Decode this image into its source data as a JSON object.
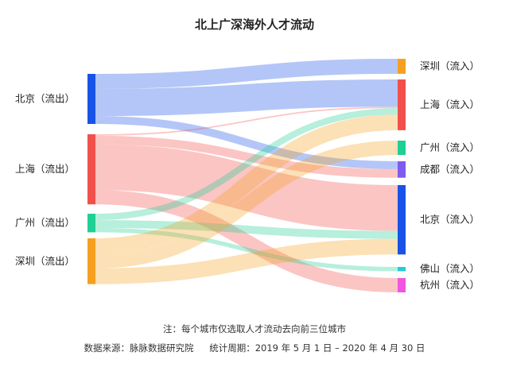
{
  "title": "北上广深海外人才流动",
  "note": "注：每个城市仅选取人才流动去向前三位城市",
  "source": "数据来源：脉脉数据研究院",
  "period": "统计周期：2019 年 5 月 1 日 – 2020 年 4 月 30 日",
  "chart_data": {
    "type": "sankey",
    "sources": [
      {
        "name": "北京（流出）",
        "color": "#1852e6"
      },
      {
        "name": "上海（流出）",
        "color": "#f2504b"
      },
      {
        "name": "广州（流出）",
        "color": "#20cf96"
      },
      {
        "name": "深圳（流出）",
        "color": "#f5a020"
      }
    ],
    "targets": [
      {
        "name": "深圳（流入）",
        "color": "#f5a020"
      },
      {
        "name": "上海（流入）",
        "color": "#f2504b"
      },
      {
        "name": "广州（流入）",
        "color": "#20cf96"
      },
      {
        "name": "成都（流入）",
        "color": "#7f5bf0"
      },
      {
        "name": "北京（流入）",
        "color": "#1852e6"
      },
      {
        "name": "佛山（流入）",
        "color": "#26c9d9"
      },
      {
        "name": "杭州（流入）",
        "color": "#f056e0"
      }
    ],
    "links": [
      {
        "source": "北京（流出）",
        "target": "深圳（流入）",
        "value": 21
      },
      {
        "source": "北京（流出）",
        "target": "上海（流入）",
        "value": 38
      },
      {
        "source": "北京（流出）",
        "target": "成都（流入）",
        "value": 11
      },
      {
        "source": "上海（流出）",
        "target": "上海（流入）",
        "value": 2
      },
      {
        "source": "上海（流出）",
        "target": "成都（流入）",
        "value": 12
      },
      {
        "source": "上海（流出）",
        "target": "北京（流入）",
        "value": 64
      },
      {
        "source": "上海（流出）",
        "target": "杭州（流入）",
        "value": 20
      },
      {
        "source": "广州（流出）",
        "target": "上海（流入）",
        "value": 9
      },
      {
        "source": "广州（流出）",
        "target": "北京（流入）",
        "value": 11
      },
      {
        "source": "广州（流出）",
        "target": "佛山（流入）",
        "value": 6
      },
      {
        "source": "深圳（流出）",
        "target": "上海（流入）",
        "value": 22
      },
      {
        "source": "深圳（流出）",
        "target": "广州（流入）",
        "value": 20
      },
      {
        "source": "深圳（流出）",
        "target": "北京（流入）",
        "value": 22
      }
    ]
  }
}
